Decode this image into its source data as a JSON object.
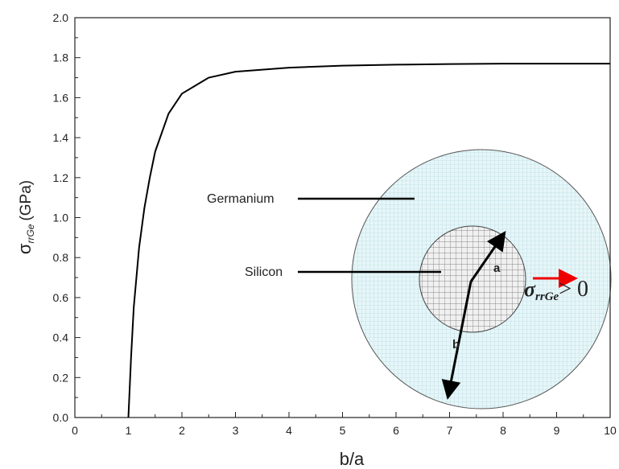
{
  "chart_data": {
    "type": "line",
    "x_label": "b/a",
    "y_label": {
      "symbol": "σ",
      "subscript": "rrGe",
      "unit": "(GPa)"
    },
    "x": [
      1,
      1.05,
      1.1,
      1.2,
      1.3,
      1.4,
      1.5,
      1.75,
      2,
      2.5,
      3,
      4,
      5,
      6,
      7,
      8,
      9,
      10
    ],
    "values": [
      0,
      0.3,
      0.55,
      0.85,
      1.05,
      1.2,
      1.33,
      1.52,
      1.62,
      1.7,
      1.73,
      1.75,
      1.76,
      1.765,
      1.768,
      1.77,
      1.77,
      1.77
    ],
    "color": "#000000",
    "xlim": [
      0,
      10
    ],
    "xticks": [
      0,
      1,
      2,
      3,
      4,
      5,
      6,
      7,
      8,
      9,
      10
    ],
    "x_minor_ticks": [
      0.5,
      1.5,
      2.5,
      3.5,
      4.5,
      5.5,
      6.5,
      7.5,
      8.5,
      9.5
    ],
    "ylim": [
      0,
      2
    ],
    "yticks": [
      {
        "value": 0,
        "label": "0.0"
      },
      0.2,
      0.4,
      0.6,
      0.8,
      {
        "value": 1,
        "label": "1.0"
      },
      1.2,
      1.4,
      1.6,
      1.8,
      {
        "value": 2,
        "label": "2.0"
      }
    ],
    "y_minor_ticks": [
      0.1,
      0.3,
      0.5,
      0.7,
      0.9,
      1.1,
      1.3,
      1.5,
      1.7,
      1.9
    ],
    "annotations": {
      "germanium": "Germanium",
      "silicon": "Silicon",
      "a": "a",
      "b": "b",
      "stress": {
        "symbol": "σ",
        "subscript": "rrGe",
        "relation": "> 0"
      }
    }
  }
}
